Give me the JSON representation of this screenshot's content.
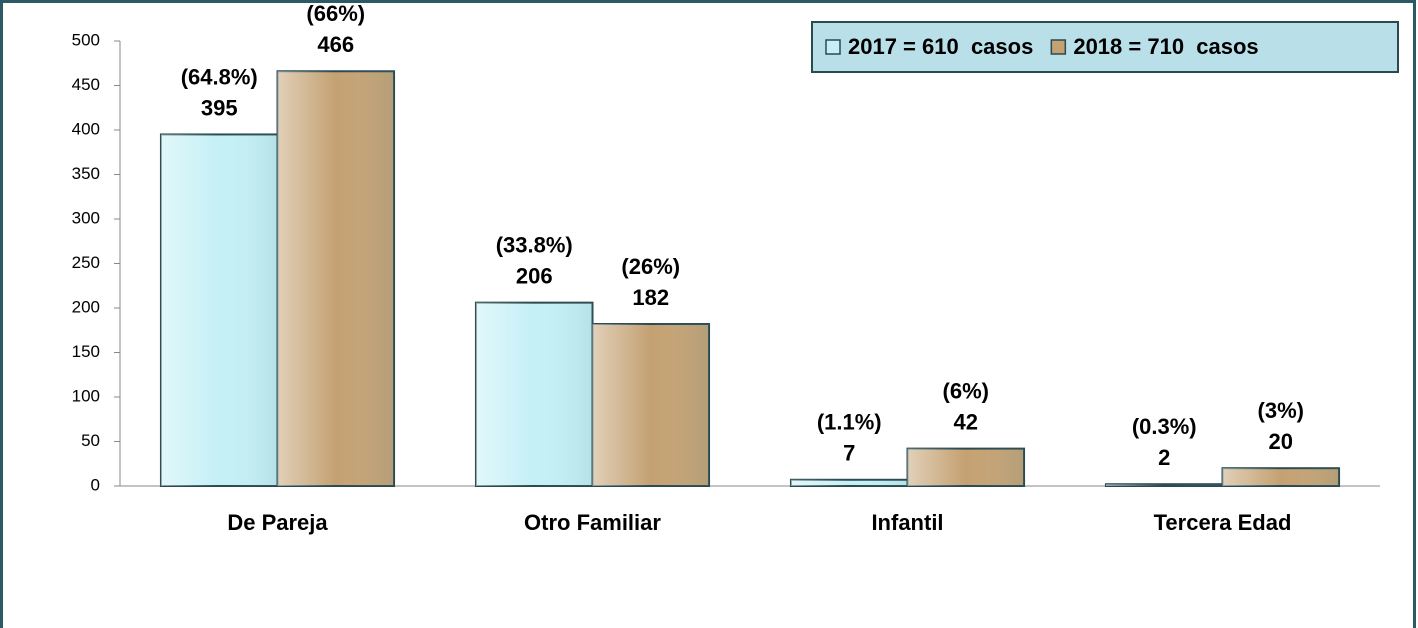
{
  "chart_data": {
    "type": "bar",
    "categories": [
      "De Pareja",
      "Otro Familiar",
      "Infantil",
      "Tercera Edad"
    ],
    "series": [
      {
        "name": "2017 = 610  casos",
        "color": "#c4f0f6",
        "values": [
          395,
          206,
          7,
          2
        ],
        "percent_labels": [
          "(64.8%)",
          "(33.8%)",
          "(1.1%)",
          "(0.3%)"
        ]
      },
      {
        "name": "2018 = 710  casos",
        "color": "#c4a172",
        "values": [
          466,
          182,
          42,
          20
        ],
        "percent_labels": [
          "(66%)",
          "(26%)",
          "(6%)",
          "(3%)"
        ]
      }
    ],
    "ylim": [
      0,
      500
    ],
    "yticks": [
      0,
      50,
      100,
      150,
      200,
      250,
      300,
      350,
      400,
      450,
      500
    ],
    "grid": false,
    "legend": "top-right"
  }
}
